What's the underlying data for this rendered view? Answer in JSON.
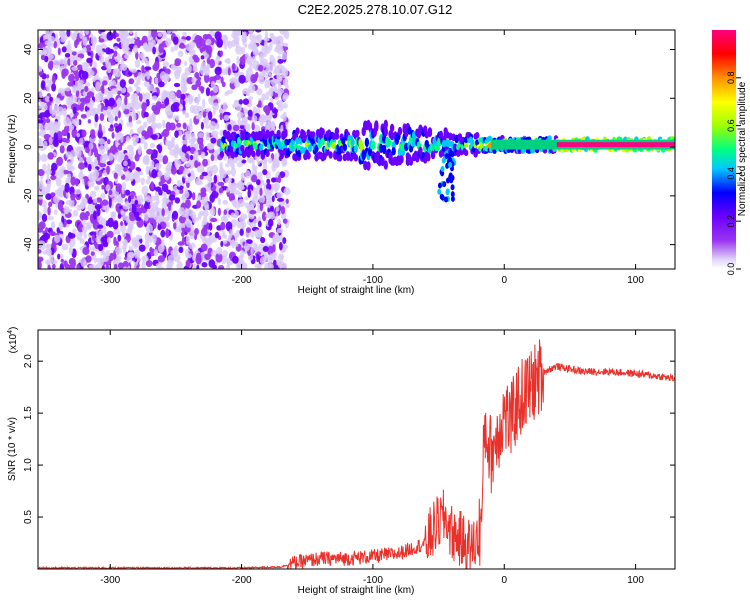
{
  "title": "C2E2.2025.278.10.07.G12",
  "chart_data": [
    {
      "type": "heatmap",
      "xlabel": "Height of straight line (km)",
      "ylabel": "Frequency (Hz)",
      "xlim": [
        -355,
        130
      ],
      "ylim": [
        -50,
        48
      ],
      "x_ticks": [
        -300,
        -200,
        -100,
        0,
        100
      ],
      "x_tick_labels": [
        "-300",
        "-200",
        "-100",
        "0",
        "100"
      ],
      "y_ticks": [
        -40,
        -20,
        0,
        20,
        40
      ],
      "y_tick_labels": [
        "-40",
        "-20",
        "0",
        "20",
        "40"
      ],
      "colorbar": {
        "label": "Normalized spectral amplitude",
        "range": [
          0,
          1
        ],
        "ticks": [
          0,
          0.2,
          0.4,
          0.6,
          0.8
        ],
        "tick_labels": [
          "0.0",
          "0.2",
          "0.4",
          "0.6",
          "0.8"
        ],
        "colors": [
          "#f2eefc",
          "#9a34f0",
          "#6a00ff",
          "#0000ff",
          "#00c8ff",
          "#00ff80",
          "#a0ff00",
          "#ffff00",
          "#ff9000",
          "#ff0000",
          "#ff0080"
        ]
      },
      "features": [
        {
          "description": "scattered low-amplitude noise",
          "x_range": [
            -355,
            -165
          ],
          "freq_range": [
            -50,
            48
          ],
          "amplitude": 0.1
        },
        {
          "description": "signal band",
          "x_range": [
            -215,
            130
          ],
          "center_freq_hz": 1,
          "amplitude": [
            0.3,
            0.9
          ]
        },
        {
          "description": "strong carrier tone",
          "x_range": [
            40,
            130
          ],
          "freq_hz": 1,
          "amplitude": 0.95
        }
      ]
    },
    {
      "type": "line",
      "xlabel": "Height of straight line (km)",
      "ylabel": "SNR (10 * v/v)",
      "y_multiplier_label": "(x10",
      "y_multiplier_exp": "4",
      "xlim": [
        -355,
        130
      ],
      "ylim": [
        0,
        2.3
      ],
      "x_ticks": [
        -300,
        -200,
        -100,
        0,
        100
      ],
      "x_tick_labels": [
        "-300",
        "-200",
        "-100",
        "0",
        "100"
      ],
      "y_ticks": [
        0.5,
        1.0,
        1.5,
        2.0
      ],
      "y_tick_labels": [
        "0.5",
        "1.0",
        "1.5",
        "2.0"
      ],
      "series": [
        {
          "name": "SNR",
          "color": "#e8312a",
          "x": [
            -355,
            -300,
            -250,
            -200,
            -170,
            -160,
            -150,
            -140,
            -120,
            -100,
            -80,
            -60,
            -50,
            -45,
            -40,
            -35,
            -30,
            -25,
            -20,
            -17,
            -15,
            -12,
            -10,
            -5,
            0,
            5,
            10,
            20,
            30,
            40,
            60,
            80,
            100,
            120,
            130
          ],
          "y": [
            0.01,
            0.01,
            0.01,
            0.01,
            0.02,
            0.06,
            0.08,
            0.1,
            0.1,
            0.12,
            0.15,
            0.25,
            0.45,
            0.5,
            0.35,
            0.3,
            0.25,
            0.2,
            0.3,
            0.5,
            1.4,
            1.2,
            1.1,
            1.3,
            1.5,
            1.4,
            1.6,
            1.75,
            1.9,
            1.95,
            1.9,
            1.9,
            1.88,
            1.85,
            1.83
          ]
        }
      ]
    }
  ]
}
